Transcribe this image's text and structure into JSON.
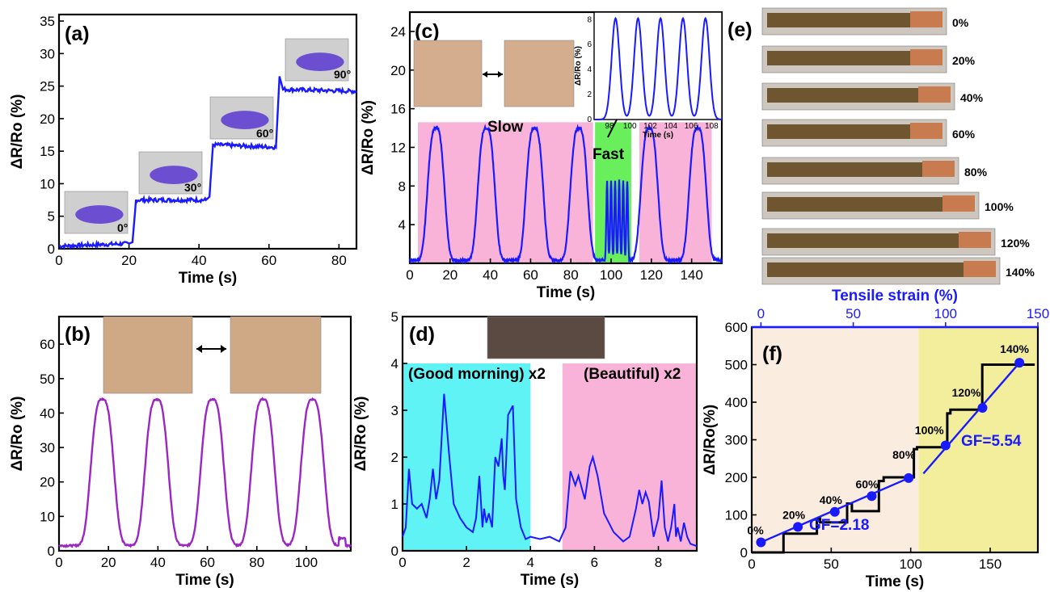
{
  "chart_data": [
    {
      "panel": "(a)",
      "type": "line",
      "xlabel": "Time (s)",
      "ylabel": "ΔR/Ro (%)",
      "xlim": [
        0,
        85
      ],
      "ylim": [
        0,
        36
      ],
      "xticks": [
        0,
        20,
        40,
        60,
        80
      ],
      "yticks": [
        0,
        5,
        10,
        15,
        20,
        25,
        30,
        35
      ],
      "color": "#1a1aff",
      "series": [
        {
          "x": [
            0,
            20,
            21,
            22,
            42,
            43,
            44,
            62,
            63,
            64,
            85
          ],
          "y": [
            0.4,
            0.8,
            1.0,
            7.5,
            7.5,
            8.0,
            16.0,
            15.6,
            26.5,
            24.5,
            24.2
          ]
        }
      ],
      "annotations": [
        "0°",
        "30°",
        "60°",
        "90°"
      ]
    },
    {
      "panel": "(b)",
      "type": "line",
      "xlabel": "Time (s)",
      "ylabel": "ΔR/Ro (%)",
      "xlim": [
        0,
        118
      ],
      "ylim": [
        0,
        68
      ],
      "xticks": [
        0,
        20,
        40,
        60,
        80,
        100
      ],
      "yticks": [
        0,
        10,
        20,
        30,
        40,
        50,
        60
      ],
      "color": "#9b26c4",
      "peaks_x": [
        17.5,
        39.5,
        62,
        82.5,
        102.5
      ],
      "peak_y": 44,
      "baseline": 1.5
    },
    {
      "panel": "(c)",
      "type": "line",
      "xlabel": "Time (s)",
      "ylabel": "ΔR/Ro (%)",
      "xlim": [
        0,
        155
      ],
      "ylim": [
        0,
        26
      ],
      "xticks": [
        0,
        20,
        40,
        60,
        80,
        100,
        120,
        140
      ],
      "yticks": [
        4,
        8,
        12,
        16,
        20,
        24
      ],
      "color": "#1a1aff",
      "slow_peaks_x": [
        13,
        38,
        62,
        84,
        119,
        143
      ],
      "slow_peak_y": 14,
      "fast_peaks_x": [
        98,
        100,
        102,
        104,
        106,
        108
      ],
      "fast_peak_y": 8.3,
      "regions": [
        {
          "label": "Slow",
          "from": 4,
          "to": 91,
          "color": "#f9b3d8"
        },
        {
          "label": "Fast",
          "from": 92,
          "to": 110,
          "color": "#6aef5c"
        },
        {
          "label": "",
          "from": 114,
          "to": 150,
          "color": "#f9b3d8"
        }
      ],
      "inset": {
        "xlabel": "Time (s)",
        "ylabel": "ΔR/Ro (%)",
        "xlim": [
          96.5,
          109
        ],
        "ylim": [
          0,
          8.6
        ],
        "xticks": [
          98,
          100,
          102,
          104,
          106,
          108
        ],
        "yticks": [
          0,
          2,
          4,
          6,
          8
        ]
      }
    },
    {
      "panel": "(d)",
      "type": "line",
      "xlabel": "Time (s)",
      "ylabel": "ΔR/Ro (%)",
      "xlim": [
        0,
        9.2
      ],
      "ylim": [
        0,
        5
      ],
      "xticks": [
        0,
        2,
        4,
        6,
        8
      ],
      "yticks": [
        0,
        1,
        2,
        3,
        4,
        5
      ],
      "color": "#1a1aff",
      "regions": [
        {
          "label": "(Good morning) x2",
          "from": 0,
          "to": 4,
          "color": "#5ff3f6"
        },
        {
          "label": "(Beautiful) x2",
          "from": 5,
          "to": 9.2,
          "color": "#f9b3d8"
        }
      ],
      "series": [
        {
          "x": [
            0,
            0.1,
            0.2,
            0.3,
            0.45,
            0.6,
            0.75,
            0.85,
            0.95,
            1.05,
            1.15,
            1.3,
            1.45,
            1.6,
            1.8,
            2.0,
            2.2,
            2.3,
            2.4,
            2.5,
            2.55,
            2.62,
            2.7,
            2.8,
            2.9,
            3.0,
            3.1,
            3.15,
            3.2,
            3.3,
            3.45,
            3.55,
            3.7,
            3.85,
            4.0,
            4.3,
            4.6,
            4.9,
            5.0,
            5.1,
            5.25,
            5.4,
            5.5,
            5.7,
            5.85,
            5.95,
            6.1,
            6.3,
            6.6,
            6.9,
            7.1,
            7.3,
            7.4,
            7.5,
            7.6,
            7.7,
            7.85,
            8.0,
            8.1,
            8.2,
            8.3,
            8.4,
            8.5,
            8.55,
            8.6,
            8.7,
            8.8,
            8.9,
            9.0,
            9.2
          ],
          "y": [
            0.3,
            0.5,
            1.75,
            1.0,
            0.9,
            1.0,
            0.7,
            1.1,
            1.75,
            1.1,
            1.5,
            3.35,
            2.1,
            1.0,
            0.7,
            0.5,
            0.4,
            0.7,
            1.6,
            0.5,
            0.9,
            0.6,
            0.8,
            0.5,
            2.0,
            1.8,
            2.4,
            1.6,
            1.3,
            2.9,
            3.1,
            1.1,
            0.5,
            0.25,
            0.3,
            0.25,
            0.3,
            0.2,
            0.35,
            0.5,
            1.7,
            1.4,
            1.6,
            1.1,
            1.8,
            2.0,
            1.6,
            0.8,
            0.4,
            0.2,
            0.3,
            0.9,
            1.3,
            1.0,
            1.25,
            1.05,
            0.3,
            0.7,
            1.5,
            0.5,
            0.2,
            0.5,
            1.0,
            0.3,
            0.5,
            0.2,
            0.6,
            0.3,
            0.15,
            0.1
          ]
        }
      ]
    },
    {
      "panel": "(f)",
      "type": "line",
      "xlabel": "Time (s)",
      "ylabel": "ΔR/Ro(%)",
      "x2label": "Tensile strain (%)",
      "xlim": [
        0,
        180
      ],
      "ylim": [
        0,
        600
      ],
      "x2lim": [
        -5,
        150
      ],
      "xticks": [
        0,
        50,
        100,
        150
      ],
      "yticks": [
        0,
        100,
        200,
        300,
        400,
        500,
        600
      ],
      "x2ticks": [
        0,
        50,
        100,
        150
      ],
      "regions": [
        {
          "from": 0,
          "to": 105,
          "color": "#fbece0"
        },
        {
          "from": 105,
          "to": 180,
          "color": "#f3ee9c"
        }
      ],
      "step_series": {
        "x": [
          0,
          20,
          20,
          41,
          41,
          43,
          43,
          60,
          60,
          63,
          63,
          80,
          80,
          83,
          83,
          102,
          102,
          104,
          104,
          123,
          123,
          125,
          125,
          145,
          145,
          146,
          146,
          178
        ],
        "y": [
          0,
          0,
          50,
          50,
          90,
          90,
          80,
          80,
          130,
          130,
          110,
          110,
          190,
          190,
          200,
          200,
          275,
          275,
          280,
          280,
          370,
          370,
          380,
          380,
          500,
          500,
          500,
          500
        ]
      },
      "strain_points": {
        "strain": [
          0,
          20,
          40,
          60,
          80,
          100,
          120,
          140
        ],
        "y": [
          27,
          68,
          108,
          150,
          198,
          285,
          385,
          505
        ],
        "labels": [
          "0%",
          "20%",
          "40%",
          "60%",
          "80%",
          "100%",
          "120%",
          "140%"
        ]
      },
      "fits": [
        {
          "label": "GF=2.18"
        },
        {
          "label": "GF=5.54"
        }
      ]
    }
  ],
  "panel_e": {
    "label": "(e)",
    "strains": [
      "0%",
      "20%",
      "40%",
      "60%",
      "80%",
      "100%",
      "120%",
      "140%"
    ]
  }
}
